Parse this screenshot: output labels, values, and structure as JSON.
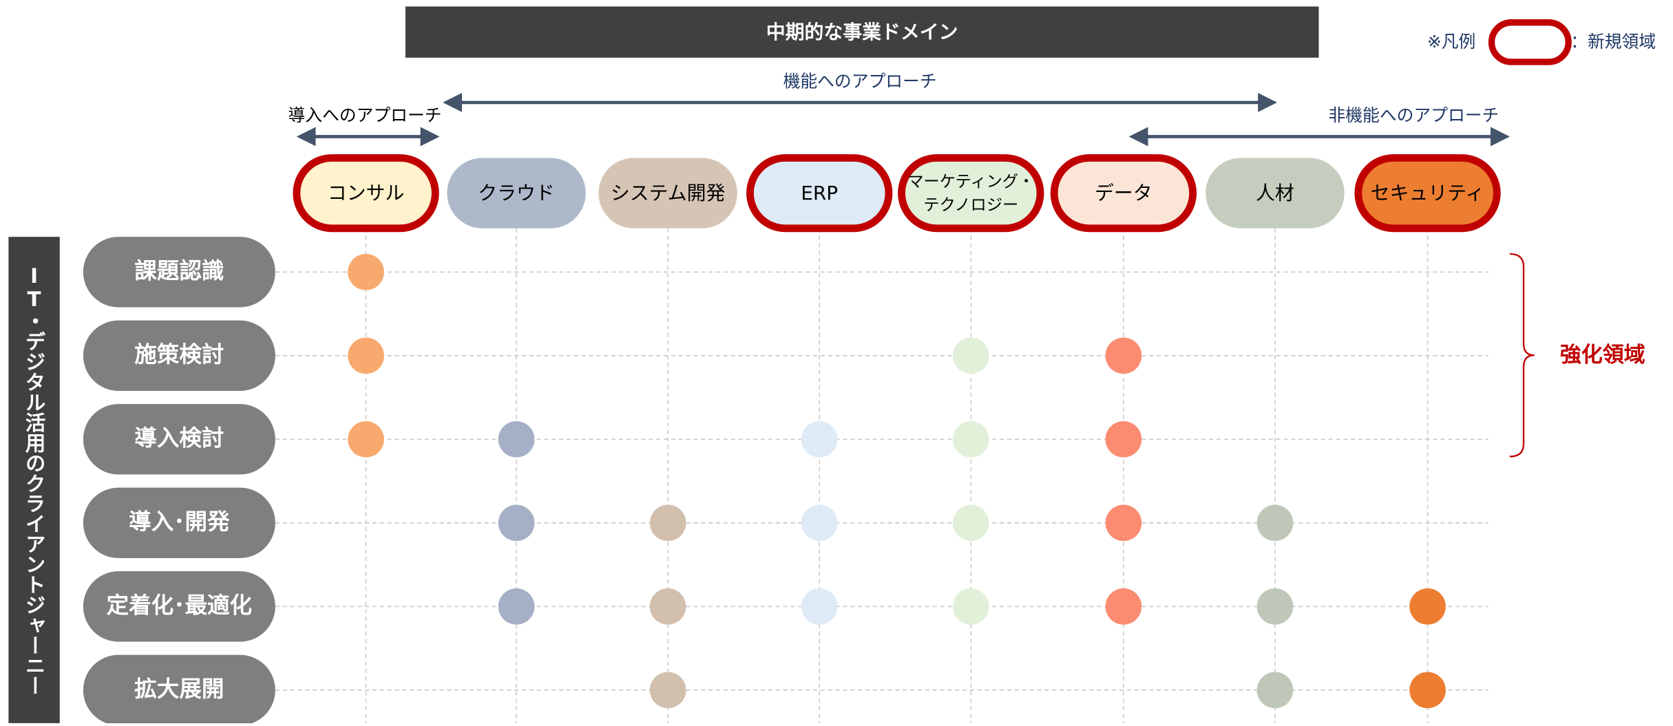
{
  "header": {
    "title": "中期的な事業ドメイン"
  },
  "legend": {
    "prefix": "※凡例",
    "label": "：新規領域"
  },
  "approaches": [
    {
      "label": "機能へのアプローチ"
    },
    {
      "label": "導入へのアプローチ"
    },
    {
      "label": "非機能へのアプローチ"
    }
  ],
  "columns": [
    {
      "lines": [
        "コンサル"
      ],
      "new": true,
      "fill": "#fff2cc",
      "dot": "#f8a96e",
      "text": "#000"
    },
    {
      "lines": [
        "クラウド"
      ],
      "new": false,
      "fill": "#adb9ca",
      "dot": "#a5b0c6",
      "text": "#000"
    },
    {
      "lines": [
        "システム開発"
      ],
      "new": false,
      "fill": "#d6c5b5",
      "dot": "#d2bfad",
      "text": "#000"
    },
    {
      "lines": [
        "ERP"
      ],
      "new": true,
      "fill": "#deebf7",
      "dot": "#deebf7",
      "text": "#000"
    },
    {
      "lines": [
        "マーケティング・",
        "テクノロジー"
      ],
      "new": true,
      "fill": "#e2f0d9",
      "dot": "#e2f0d9",
      "text": "#000"
    },
    {
      "lines": [
        "データ"
      ],
      "new": true,
      "fill": "#fbe5d6",
      "dot": "#fb8c72",
      "text": "#000"
    },
    {
      "lines": [
        "人材"
      ],
      "new": false,
      "fill": "#c5cdbf",
      "dot": "#bfc8b8",
      "text": "#000"
    },
    {
      "lines": [
        "セキュリティ"
      ],
      "new": true,
      "fill": "#ed7d31",
      "dot": "#ed7d31",
      "text": "#000"
    }
  ],
  "rows": [
    {
      "label": "課題認識",
      "dots": [
        true,
        false,
        false,
        false,
        false,
        false,
        false,
        false
      ]
    },
    {
      "label": "施策検討",
      "dots": [
        true,
        false,
        false,
        false,
        true,
        true,
        false,
        false
      ]
    },
    {
      "label": "導入検討",
      "dots": [
        true,
        true,
        false,
        true,
        true,
        true,
        false,
        false
      ]
    },
    {
      "label": "導入･開発",
      "dots": [
        false,
        true,
        true,
        true,
        true,
        true,
        true,
        false
      ]
    },
    {
      "label": "定着化･最適化",
      "dots": [
        false,
        true,
        true,
        true,
        true,
        true,
        true,
        true
      ]
    },
    {
      "label": "拡大展開",
      "dots": [
        false,
        false,
        true,
        false,
        false,
        false,
        true,
        true
      ]
    }
  ],
  "side_label": "IT・デジタル活用のクライアントジャーニー",
  "brace_label": "強化領域"
}
